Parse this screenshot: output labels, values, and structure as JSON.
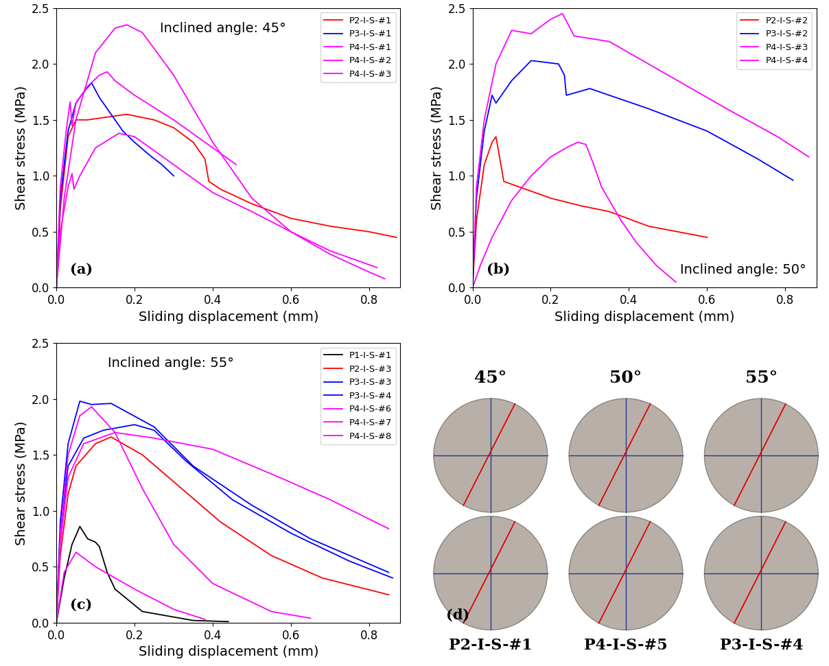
{
  "chart_data": [
    {
      "type": "line",
      "panel_label": "(a)",
      "annotation": "Inclined angle: 45°",
      "x_label": "Sliding displacement (mm)",
      "y_label": "Shear stress (MPa)",
      "xlim": [
        0,
        0.88
      ],
      "ylim": [
        0,
        2.5
      ],
      "xticks": [
        {
          "value": 0,
          "label": "0.0"
        },
        0.2,
        0.4,
        0.6,
        0.8
      ],
      "yticks": [
        {
          "value": 0,
          "label": "0.0"
        },
        0.5,
        {
          "value": 1,
          "label": "1.0"
        },
        1.5,
        {
          "value": 2,
          "label": "2.0"
        },
        2.5
      ],
      "legend": "upper right",
      "series": [
        {
          "name": "P2-I-S-#1",
          "color": "#ff0000",
          "x": [
            0,
            0.01,
            0.03,
            0.05,
            0.08,
            0.12,
            0.18,
            0.25,
            0.3,
            0.35,
            0.38,
            0.39,
            0.42,
            0.5,
            0.6,
            0.7,
            0.8,
            0.87
          ],
          "values": [
            0,
            0.7,
            1.35,
            1.5,
            1.5,
            1.52,
            1.55,
            1.5,
            1.43,
            1.3,
            1.15,
            0.95,
            0.88,
            0.75,
            0.62,
            0.55,
            0.5,
            0.45
          ]
        },
        {
          "name": "P3-I-S-#1",
          "color": "#0000ff",
          "x": [
            0,
            0.01,
            0.03,
            0.05,
            0.07,
            0.09,
            0.11,
            0.13,
            0.17,
            0.2,
            0.24,
            0.27,
            0.3
          ],
          "values": [
            0,
            0.8,
            1.4,
            1.65,
            1.75,
            1.83,
            1.7,
            1.6,
            1.4,
            1.3,
            1.18,
            1.1,
            1.0
          ]
        },
        {
          "name": "P4-I-S-#1",
          "color": "#ff00ff",
          "x": [
            0,
            0.01,
            0.025,
            0.035,
            0.04,
            0.05,
            0.08,
            0.11,
            0.13,
            0.15,
            0.2,
            0.3,
            0.4,
            0.46
          ],
          "values": [
            0,
            0.9,
            1.4,
            1.66,
            1.45,
            1.65,
            1.8,
            1.9,
            1.93,
            1.85,
            1.72,
            1.5,
            1.25,
            1.1
          ]
        },
        {
          "name": "P4-I-S-#2",
          "color": "#ff00ff",
          "x": [
            0,
            0.01,
            0.03,
            0.04,
            0.045,
            0.06,
            0.1,
            0.16,
            0.2,
            0.3,
            0.4,
            0.5,
            0.6,
            0.7,
            0.82
          ],
          "values": [
            0,
            0.5,
            0.9,
            1.02,
            0.88,
            1.0,
            1.25,
            1.38,
            1.35,
            1.1,
            0.85,
            0.68,
            0.5,
            0.33,
            0.18
          ]
        },
        {
          "name": "P4-I-S-#3",
          "color": "#ff00ff",
          "x": [
            0,
            0.02,
            0.05,
            0.1,
            0.15,
            0.18,
            0.22,
            0.3,
            0.4,
            0.5,
            0.6,
            0.7,
            0.8,
            0.84
          ],
          "values": [
            0,
            0.8,
            1.5,
            2.1,
            2.32,
            2.35,
            2.28,
            1.9,
            1.3,
            0.8,
            0.5,
            0.3,
            0.14,
            0.08
          ]
        }
      ]
    },
    {
      "type": "line",
      "panel_label": "(b)",
      "annotation": "Inclined angle: 50°",
      "x_label": "Sliding displacement (mm)",
      "y_label": "Shear stress (MPa)",
      "xlim": [
        0,
        0.88
      ],
      "ylim": [
        0,
        2.5
      ],
      "xticks": [
        {
          "value": 0,
          "label": "0.0"
        },
        0.2,
        0.4,
        0.6,
        0.8
      ],
      "yticks": [
        {
          "value": 0,
          "label": "0.0"
        },
        0.5,
        {
          "value": 1,
          "label": "1.0"
        },
        1.5,
        {
          "value": 2,
          "label": "2.0"
        },
        2.5
      ],
      "legend": "upper right",
      "series": [
        {
          "name": "P2-I-S-#2",
          "color": "#ff0000",
          "x": [
            0,
            0.01,
            0.03,
            0.05,
            0.06,
            0.07,
            0.08,
            0.12,
            0.2,
            0.28,
            0.35,
            0.45,
            0.6
          ],
          "values": [
            0,
            0.6,
            1.1,
            1.3,
            1.35,
            1.15,
            0.95,
            0.9,
            0.8,
            0.73,
            0.68,
            0.55,
            0.45
          ]
        },
        {
          "name": "P3-I-S-#2",
          "color": "#0000ff",
          "x": [
            0,
            0.01,
            0.03,
            0.05,
            0.06,
            0.1,
            0.15,
            0.22,
            0.235,
            0.24,
            0.3,
            0.45,
            0.6,
            0.73,
            0.82
          ],
          "values": [
            0,
            0.8,
            1.4,
            1.72,
            1.65,
            1.85,
            2.03,
            2.0,
            1.9,
            1.72,
            1.78,
            1.6,
            1.4,
            1.15,
            0.96
          ]
        },
        {
          "name": "P4-I-S-#3",
          "color": "#ff00ff",
          "x": [
            0,
            0.01,
            0.03,
            0.06,
            0.1,
            0.15,
            0.2,
            0.23,
            0.26,
            0.35,
            0.5,
            0.65,
            0.78,
            0.86
          ],
          "values": [
            0,
            0.9,
            1.5,
            2.0,
            2.3,
            2.27,
            2.4,
            2.45,
            2.25,
            2.2,
            1.9,
            1.6,
            1.35,
            1.17
          ]
        },
        {
          "name": "P4-I-S-#4",
          "color": "#ff00ff",
          "x": [
            0,
            0.02,
            0.05,
            0.1,
            0.15,
            0.2,
            0.25,
            0.27,
            0.29,
            0.31,
            0.33,
            0.38,
            0.42,
            0.47,
            0.52
          ],
          "values": [
            0,
            0.2,
            0.45,
            0.78,
            1.0,
            1.17,
            1.27,
            1.3,
            1.28,
            1.1,
            0.9,
            0.6,
            0.4,
            0.2,
            0.05
          ]
        }
      ]
    },
    {
      "type": "line",
      "panel_label": "(c)",
      "annotation": "Inclined angle: 55°",
      "x_label": "Sliding displacement (mm)",
      "y_label": "Shear stress (MPa)",
      "xlim": [
        0,
        0.88
      ],
      "ylim": [
        0,
        2.5
      ],
      "xticks": [
        {
          "value": 0,
          "label": "0.0"
        },
        0.2,
        0.4,
        0.6,
        0.8
      ],
      "yticks": [
        {
          "value": 0,
          "label": "0.0"
        },
        0.5,
        {
          "value": 1,
          "label": "1.0"
        },
        1.5,
        {
          "value": 2,
          "label": "2.0"
        },
        2.5
      ],
      "legend": "upper right",
      "series": [
        {
          "name": "P1-I-S-#1",
          "color": "#000000",
          "x": [
            0,
            0.02,
            0.04,
            0.06,
            0.08,
            0.1,
            0.11,
            0.13,
            0.15,
            0.22,
            0.35,
            0.44
          ],
          "values": [
            0,
            0.4,
            0.7,
            0.86,
            0.75,
            0.72,
            0.68,
            0.45,
            0.3,
            0.1,
            0.02,
            0.01
          ]
        },
        {
          "name": "P2-I-S-#3",
          "color": "#ff0000",
          "x": [
            0,
            0.01,
            0.03,
            0.05,
            0.1,
            0.14,
            0.22,
            0.32,
            0.42,
            0.55,
            0.68,
            0.85
          ],
          "values": [
            0,
            0.6,
            1.15,
            1.4,
            1.6,
            1.66,
            1.5,
            1.2,
            0.9,
            0.6,
            0.4,
            0.25
          ]
        },
        {
          "name": "P3-I-S-#3",
          "color": "#0000ff",
          "x": [
            0,
            0.01,
            0.03,
            0.06,
            0.09,
            0.14,
            0.25,
            0.35,
            0.5,
            0.65,
            0.85
          ],
          "values": [
            0,
            0.9,
            1.6,
            1.98,
            1.95,
            1.96,
            1.75,
            1.4,
            1.05,
            0.75,
            0.45
          ]
        },
        {
          "name": "P3-I-S-#4",
          "color": "#0000ff",
          "x": [
            0,
            0.01,
            0.03,
            0.07,
            0.12,
            0.2,
            0.25,
            0.33,
            0.45,
            0.6,
            0.75,
            0.86
          ],
          "values": [
            0,
            0.8,
            1.4,
            1.65,
            1.72,
            1.77,
            1.72,
            1.45,
            1.1,
            0.8,
            0.55,
            0.4
          ]
        },
        {
          "name": "P4-I-S-#6",
          "color": "#ff00ff",
          "x": [
            0,
            0.02,
            0.05,
            0.1,
            0.2,
            0.3,
            0.38
          ],
          "values": [
            0,
            0.45,
            0.63,
            0.5,
            0.3,
            0.12,
            0.03
          ]
        },
        {
          "name": "P4-I-S-#7",
          "color": "#ff00ff",
          "x": [
            0,
            0.01,
            0.03,
            0.06,
            0.09,
            0.15,
            0.22,
            0.3,
            0.4,
            0.55,
            0.65
          ],
          "values": [
            0,
            0.8,
            1.5,
            1.85,
            1.93,
            1.7,
            1.2,
            0.7,
            0.35,
            0.1,
            0.04
          ]
        },
        {
          "name": "P4-I-S-#8",
          "color": "#ff00ff",
          "x": [
            0,
            0.01,
            0.03,
            0.07,
            0.15,
            0.25,
            0.4,
            0.57,
            0.7,
            0.85
          ],
          "values": [
            0,
            0.7,
            1.3,
            1.6,
            1.7,
            1.65,
            1.55,
            1.3,
            1.1,
            0.84
          ]
        }
      ]
    },
    {
      "type": "photo_grid",
      "panel_label": "(d)",
      "column_titles": [
        "45°",
        "50°",
        "55°"
      ],
      "specimen_labels": [
        "P2-I-S-#1",
        "P4-I-S-#5",
        "P3-I-S-#4"
      ]
    }
  ]
}
